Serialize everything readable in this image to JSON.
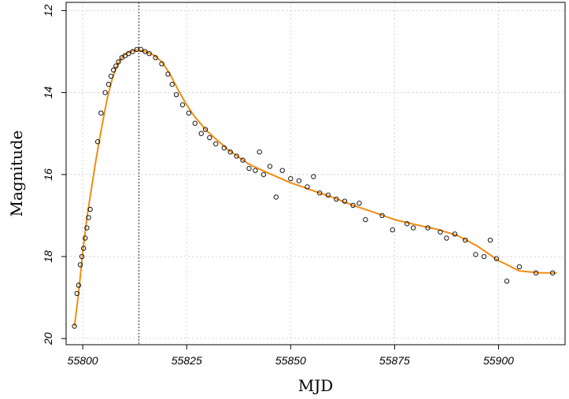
{
  "chart_data": {
    "type": "scatter",
    "xlabel": "MJD",
    "ylabel": "Magnitude",
    "xlim": [
      55796,
      55916
    ],
    "ylim": [
      20.15,
      11.8
    ],
    "y_inverted": true,
    "grid": true,
    "x_ticks": [
      55800,
      55825,
      55850,
      55875,
      55900
    ],
    "x_tick_labels": [
      "55800",
      "55825",
      "55850",
      "55875",
      "55900"
    ],
    "y_ticks": [
      12,
      14,
      16,
      18,
      20
    ],
    "y_tick_labels": [
      "12",
      "14",
      "16",
      "18",
      "20"
    ],
    "peak_marker_x": 55813.5,
    "colors": {
      "fit": "#f28c12",
      "points": "#000000",
      "grid": "#d3d3d3",
      "peak_line": "#000000"
    },
    "series": [
      {
        "type": "scatter",
        "points": [
          [
            55798,
            19.7
          ],
          [
            55798.6,
            18.9
          ],
          [
            55799,
            18.7
          ],
          [
            55799.4,
            18.2
          ],
          [
            55799.8,
            18.0
          ],
          [
            55800.2,
            17.8
          ],
          [
            55800.6,
            17.55
          ],
          [
            55801,
            17.3
          ],
          [
            55801.4,
            17.05
          ],
          [
            55801.8,
            16.85
          ],
          [
            55803.6,
            15.2
          ],
          [
            55804.4,
            14.5
          ],
          [
            55805.4,
            14.0
          ],
          [
            55806.2,
            13.8
          ],
          [
            55806.8,
            13.6
          ],
          [
            55807.4,
            13.45
          ],
          [
            55808,
            13.35
          ],
          [
            55808.6,
            13.25
          ],
          [
            55809.4,
            13.15
          ],
          [
            55810.2,
            13.1
          ],
          [
            55811,
            13.05
          ],
          [
            55812,
            13.0
          ],
          [
            55813,
            12.95
          ],
          [
            55814,
            12.95
          ],
          [
            55815,
            13.0
          ],
          [
            55816,
            13.05
          ],
          [
            55817.5,
            13.15
          ],
          [
            55819,
            13.3
          ],
          [
            55820.5,
            13.55
          ],
          [
            55821.5,
            13.8
          ],
          [
            55822.5,
            14.05
          ],
          [
            55824,
            14.3
          ],
          [
            55825.5,
            14.5
          ],
          [
            55827,
            14.75
          ],
          [
            55828.5,
            15.0
          ],
          [
            55829.5,
            14.9
          ],
          [
            55830.5,
            15.1
          ],
          [
            55832,
            15.25
          ],
          [
            55834,
            15.35
          ],
          [
            55835.5,
            15.45
          ],
          [
            55837,
            15.55
          ],
          [
            55838.5,
            15.65
          ],
          [
            55840,
            15.85
          ],
          [
            55841.5,
            15.9
          ],
          [
            55842.5,
            15.45
          ],
          [
            55843.5,
            16.0
          ],
          [
            55845,
            15.8
          ],
          [
            55846.5,
            16.55
          ],
          [
            55848,
            15.9
          ],
          [
            55850,
            16.1
          ],
          [
            55852,
            16.15
          ],
          [
            55854,
            16.3
          ],
          [
            55855.5,
            16.05
          ],
          [
            55857,
            16.45
          ],
          [
            55859,
            16.5
          ],
          [
            55861,
            16.6
          ],
          [
            55863,
            16.65
          ],
          [
            55865,
            16.75
          ],
          [
            55866.5,
            16.7
          ],
          [
            55868,
            17.1
          ],
          [
            55872,
            17.0
          ],
          [
            55874.5,
            17.35
          ],
          [
            55878,
            17.2
          ],
          [
            55879.5,
            17.3
          ],
          [
            55883,
            17.3
          ],
          [
            55886,
            17.4
          ],
          [
            55887.5,
            17.55
          ],
          [
            55889.5,
            17.45
          ],
          [
            55892,
            17.6
          ],
          [
            55894.5,
            17.95
          ],
          [
            55896.5,
            18.0
          ],
          [
            55898,
            17.6
          ],
          [
            55899.5,
            18.05
          ],
          [
            55902,
            18.6
          ],
          [
            55905,
            18.25
          ],
          [
            55909,
            18.4
          ],
          [
            55913,
            18.4
          ]
        ]
      },
      {
        "type": "line",
        "points": [
          [
            55798,
            19.7
          ],
          [
            55799,
            18.9
          ],
          [
            55800,
            17.9
          ],
          [
            55801,
            17.05
          ],
          [
            55802,
            16.4
          ],
          [
            55803,
            15.75
          ],
          [
            55804,
            15.15
          ],
          [
            55805,
            14.6
          ],
          [
            55806,
            14.1
          ],
          [
            55807,
            13.7
          ],
          [
            55808,
            13.4
          ],
          [
            55809,
            13.2
          ],
          [
            55810,
            13.08
          ],
          [
            55811,
            13.02
          ],
          [
            55812,
            12.98
          ],
          [
            55813,
            12.96
          ],
          [
            55814,
            12.97
          ],
          [
            55815,
            13.0
          ],
          [
            55817,
            13.08
          ],
          [
            55819,
            13.25
          ],
          [
            55821,
            13.55
          ],
          [
            55823,
            13.95
          ],
          [
            55825,
            14.3
          ],
          [
            55827,
            14.6
          ],
          [
            55830,
            14.95
          ],
          [
            55835,
            15.4
          ],
          [
            55840,
            15.75
          ],
          [
            55845,
            15.98
          ],
          [
            55850,
            16.2
          ],
          [
            55855,
            16.38
          ],
          [
            55860,
            16.55
          ],
          [
            55865,
            16.75
          ],
          [
            55870,
            16.92
          ],
          [
            55875,
            17.1
          ],
          [
            55880,
            17.22
          ],
          [
            55885,
            17.33
          ],
          [
            55890,
            17.48
          ],
          [
            55895,
            17.75
          ],
          [
            55900,
            18.1
          ],
          [
            55905,
            18.35
          ],
          [
            55910,
            18.4
          ],
          [
            55914,
            18.4
          ]
        ]
      }
    ]
  }
}
